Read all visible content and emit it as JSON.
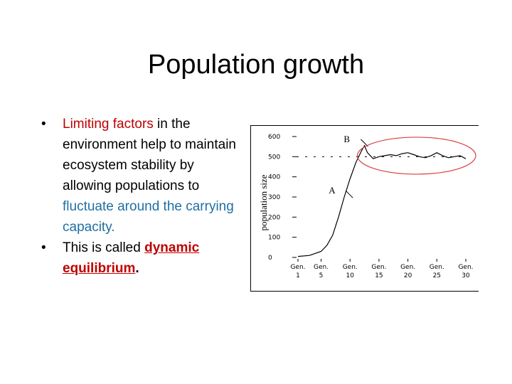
{
  "slide": {
    "title": "Population growth",
    "bullets": [
      {
        "bullet_char": "•",
        "parts": [
          {
            "text": "Limiting factors",
            "style": "red"
          },
          {
            "text": " in the environment help to maintain ecosystem stability by allowing populations to ",
            "style": "normal"
          },
          {
            "text": "fluctuate around the carrying capacity.",
            "style": "blue"
          }
        ]
      },
      {
        "bullet_char": "•",
        "parts": [
          {
            "text": "This is called ",
            "style": "normal"
          },
          {
            "text": "dynamic equilibrium",
            "style": "dyn"
          },
          {
            "text": ".",
            "style": "bold"
          }
        ]
      }
    ]
  },
  "chart_data": {
    "type": "line",
    "ylabel": "population size",
    "ylim": [
      0,
      600
    ],
    "yticks": [
      0,
      100,
      200,
      300,
      400,
      500,
      600
    ],
    "x_tick_labels": [
      {
        "top": "Gen.",
        "bottom": "1",
        "gen": 1
      },
      {
        "top": "Gen.",
        "bottom": "5",
        "gen": 5
      },
      {
        "top": "Gen.",
        "bottom": "10",
        "gen": 10
      },
      {
        "top": "Gen.",
        "bottom": "15",
        "gen": 15
      },
      {
        "top": "Gen.",
        "bottom": "20",
        "gen": 20
      },
      {
        "top": "Gen.",
        "bottom": "25",
        "gen": 25
      },
      {
        "top": "Gen.",
        "bottom": "30",
        "gen": 30
      }
    ],
    "xlim": [
      1,
      30
    ],
    "carrying_capacity": 500,
    "series": [
      {
        "points": [
          [
            1,
            5
          ],
          [
            3,
            10
          ],
          [
            5,
            30
          ],
          [
            6,
            60
          ],
          [
            7,
            110
          ],
          [
            8,
            200
          ],
          [
            9,
            300
          ],
          [
            10,
            390
          ],
          [
            11,
            470
          ],
          [
            12,
            530
          ],
          [
            12.5,
            555
          ],
          [
            13,
            520
          ],
          [
            14,
            490
          ],
          [
            15,
            500
          ],
          [
            16,
            505
          ],
          [
            17,
            510
          ],
          [
            18,
            505
          ],
          [
            19,
            515
          ],
          [
            20,
            520
          ],
          [
            21,
            510
          ],
          [
            22,
            500
          ],
          [
            23,
            495
          ],
          [
            24,
            505
          ],
          [
            25,
            520
          ],
          [
            26,
            505
          ],
          [
            27,
            495
          ],
          [
            28,
            500
          ],
          [
            29,
            505
          ],
          [
            30,
            490
          ]
        ]
      }
    ],
    "annotations": [
      {
        "text": "A",
        "gen": 10,
        "value": 310
      },
      {
        "text": "B",
        "gen": 12.6,
        "value": 565
      }
    ],
    "highlight": {
      "shape": "ellipse",
      "color": "#d94040",
      "region": "plateau near carrying capacity"
    }
  }
}
